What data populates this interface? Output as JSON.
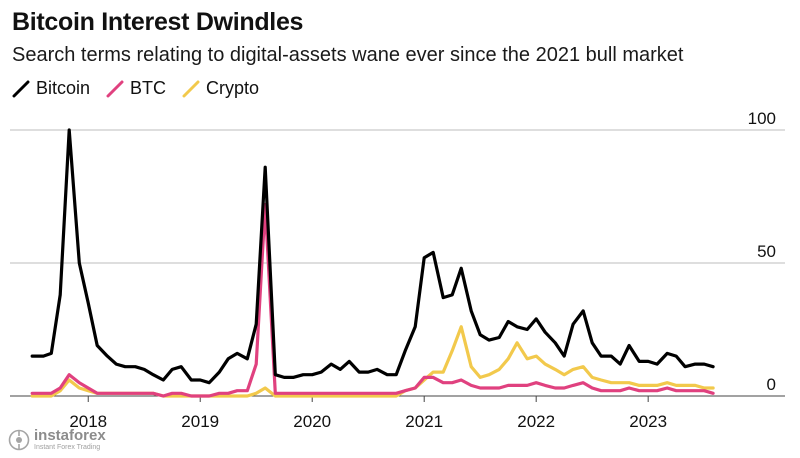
{
  "header": {
    "title": "Bitcoin Interest Dwindles",
    "subtitle": "Search terms relating to digital-assets wane ever since the 2021 bull market"
  },
  "legend": [
    {
      "label": "Bitcoin",
      "color": "#000000"
    },
    {
      "label": "BTC",
      "color": "#e0417f"
    },
    {
      "label": "Crypto",
      "color": "#f2c94c"
    }
  ],
  "watermark": {
    "brand": "instaforex",
    "tagline": "Instant Forex Trading",
    "icon": "instaforex-logo-icon"
  },
  "chart_data": {
    "type": "line",
    "title": "Bitcoin Interest Dwindles",
    "subtitle": "Search terms relating to digital-assets wane ever since the 2021 bull market",
    "xlabel": "",
    "ylabel": "",
    "ylim": [
      0,
      100
    ],
    "y_ticks": [
      0,
      50,
      100
    ],
    "x_ticks": [
      "2018",
      "2019",
      "2020",
      "2021",
      "2022",
      "2023"
    ],
    "x_tick_values": [
      2018.0,
      2019.0,
      2020.0,
      2021.0,
      2022.0,
      2023.0
    ],
    "xlim": [
      2017.48,
      2023.82
    ],
    "x": [
      2017.5,
      2017.6,
      2017.67,
      2017.75,
      2017.83,
      2017.92,
      2018.0,
      2018.08,
      2018.17,
      2018.25,
      2018.33,
      2018.42,
      2018.5,
      2018.58,
      2018.67,
      2018.75,
      2018.83,
      2018.92,
      2019.0,
      2019.08,
      2019.17,
      2019.25,
      2019.33,
      2019.42,
      2019.5,
      2019.58,
      2019.67,
      2019.75,
      2019.83,
      2019.92,
      2020.0,
      2020.08,
      2020.17,
      2020.25,
      2020.33,
      2020.42,
      2020.5,
      2020.58,
      2020.67,
      2020.75,
      2020.83,
      2020.92,
      2021.0,
      2021.08,
      2021.17,
      2021.25,
      2021.33,
      2021.42,
      2021.5,
      2021.58,
      2021.67,
      2021.75,
      2021.83,
      2021.92,
      2022.0,
      2022.08,
      2022.17,
      2022.25,
      2022.33,
      2022.42,
      2022.5,
      2022.58,
      2022.67,
      2022.75,
      2022.83,
      2022.92,
      2023.0,
      2023.08,
      2023.17,
      2023.25,
      2023.33,
      2023.42,
      2023.5,
      2023.58
    ],
    "series": [
      {
        "name": "Bitcoin",
        "color": "#000000",
        "values": [
          15,
          15,
          16,
          38,
          100,
          50,
          35,
          19,
          15,
          12,
          11,
          11,
          10,
          8,
          6,
          10,
          11,
          6,
          6,
          5,
          9,
          14,
          16,
          14,
          27,
          86,
          8,
          7,
          7,
          8,
          8,
          9,
          12,
          10,
          13,
          9,
          9,
          10,
          8,
          8,
          17,
          26,
          52,
          54,
          37,
          38,
          48,
          32,
          23,
          21,
          22,
          28,
          26,
          25,
          29,
          24,
          20,
          15,
          27,
          32,
          20,
          15,
          15,
          12,
          19,
          13,
          13,
          12,
          16,
          15,
          11,
          12,
          12,
          11
        ]
      },
      {
        "name": "BTC",
        "color": "#e0417f",
        "values": [
          1,
          1,
          1,
          3,
          8,
          5,
          3,
          1,
          1,
          1,
          1,
          1,
          1,
          1,
          0,
          1,
          1,
          0,
          0,
          0,
          1,
          1,
          2,
          2,
          12,
          72,
          1,
          1,
          1,
          1,
          1,
          1,
          1,
          1,
          1,
          1,
          1,
          1,
          1,
          1,
          2,
          3,
          7,
          7,
          5,
          5,
          6,
          4,
          3,
          3,
          3,
          4,
          4,
          4,
          5,
          4,
          3,
          3,
          4,
          5,
          3,
          2,
          2,
          2,
          3,
          2,
          2,
          2,
          3,
          2,
          2,
          2,
          2,
          1
        ]
      },
      {
        "name": "Crypto",
        "color": "#f2c94c",
        "values": [
          0,
          0,
          0,
          2,
          6,
          3,
          2,
          1,
          1,
          1,
          1,
          1,
          1,
          1,
          0,
          0,
          0,
          0,
          0,
          0,
          0,
          0,
          0,
          0,
          1,
          3,
          0,
          0,
          0,
          0,
          0,
          0,
          0,
          0,
          0,
          0,
          0,
          0,
          0,
          0,
          2,
          3,
          6,
          9,
          9,
          17,
          26,
          11,
          7,
          8,
          10,
          14,
          20,
          14,
          15,
          12,
          10,
          8,
          10,
          11,
          7,
          6,
          5,
          5,
          5,
          4,
          4,
          4,
          5,
          4,
          4,
          4,
          3,
          3
        ]
      }
    ]
  }
}
